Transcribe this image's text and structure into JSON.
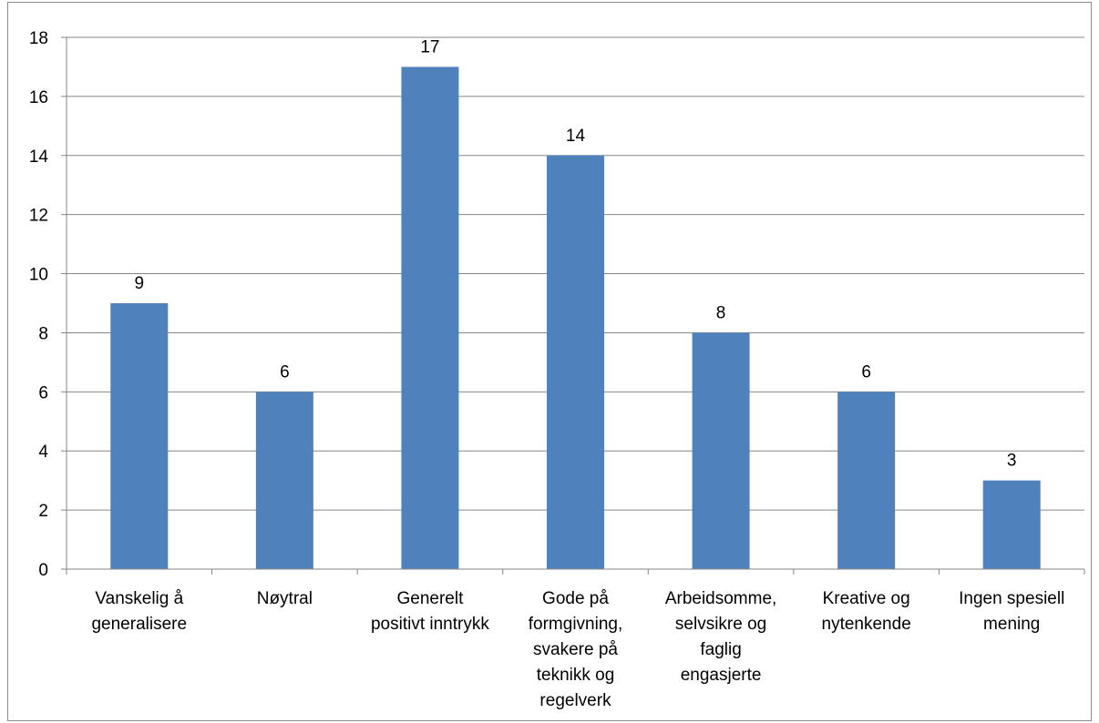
{
  "chart_data": {
    "type": "bar",
    "categories": [
      "Vanskelig å generalisere",
      "Nøytral",
      "Generelt positivt inntrykk",
      "Gode på formgivning, svakere på teknikk og regelverk",
      "Arbeidsomme, selvsikre og faglig engasjerte",
      "Kreative og nytenkende",
      "Ingen spesiell mening"
    ],
    "category_label_lines": [
      [
        "Vanskelig å",
        "generalisere"
      ],
      [
        "Nøytral"
      ],
      [
        "Generelt",
        "positivt inntrykk"
      ],
      [
        "Gode på",
        "formgivning,",
        "svakere på",
        "teknikk og",
        "regelverk"
      ],
      [
        "Arbeidsomme,",
        "selvsikre og",
        "faglig",
        "engasjerte"
      ],
      [
        "Kreative og",
        "nytenkende"
      ],
      [
        "Ingen spesiell",
        "mening"
      ]
    ],
    "values": [
      9,
      6,
      17,
      14,
      8,
      6,
      3
    ],
    "data_labels": [
      "9",
      "6",
      "17",
      "14",
      "8",
      "6",
      "3"
    ],
    "yticks": [
      "0",
      "2",
      "4",
      "6",
      "8",
      "10",
      "12",
      "14",
      "16",
      "18"
    ],
    "ylim": [
      0,
      18
    ],
    "ystep": 2,
    "title": "",
    "xlabel": "",
    "ylabel": "",
    "grid": true,
    "legend": "none",
    "bar_color": "#4f81bd",
    "grid_color": "#868686"
  }
}
